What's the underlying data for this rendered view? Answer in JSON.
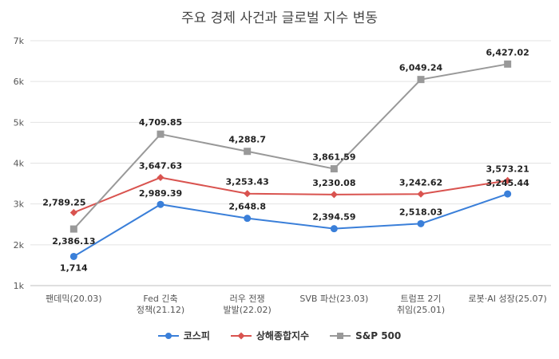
{
  "chart_data": {
    "type": "line",
    "title": "주요 경제 사건과 글로벌 지수 변동",
    "categories": [
      [
        "팬데믹(20.03)"
      ],
      [
        "Fed 긴축",
        "정책(21.12)"
      ],
      [
        "러우 전쟁",
        "발발(22.02)"
      ],
      [
        "SVB 파산(23.03)"
      ],
      [
        "트럼프 2기",
        "취임(25.01)"
      ],
      [
        "로봇·AI 성장(25.07)"
      ]
    ],
    "ylim": [
      1000,
      7000
    ],
    "yticks": [
      1000,
      2000,
      3000,
      4000,
      5000,
      6000,
      7000
    ],
    "ytick_labels": [
      "1k",
      "2k",
      "3k",
      "4k",
      "5k",
      "6k",
      "7k"
    ],
    "grid": true,
    "legend_position": "bottom",
    "series": [
      {
        "name": "코스피",
        "color": "#3a7fd9",
        "marker": "circle",
        "values": [
          1714,
          2989.39,
          2648.8,
          2394.59,
          2518.03,
          3245.44
        ],
        "labels": [
          "1,714",
          "2,989.39",
          "2,648.8",
          "2,394.59",
          "2,518.03",
          "3,245.44"
        ]
      },
      {
        "name": "상해종합지수",
        "color": "#d9534f",
        "marker": "diamond",
        "values": [
          2789.25,
          3647.63,
          3253.43,
          3230.08,
          3242.62,
          3573.21
        ],
        "labels": [
          "2,789.25",
          "3,647.63",
          "3,253.43",
          "3,230.08",
          "3,242.62",
          "3,573.21"
        ]
      },
      {
        "name": "S&P 500",
        "color": "#999999",
        "marker": "square",
        "values": [
          2386.13,
          4709.85,
          4288.7,
          3861.59,
          6049.24,
          6427.02
        ],
        "labels": [
          "2,386.13",
          "4,709.85",
          "4,288.7",
          "3,861.59",
          "6,049.24",
          "6,427.02"
        ]
      }
    ]
  }
}
